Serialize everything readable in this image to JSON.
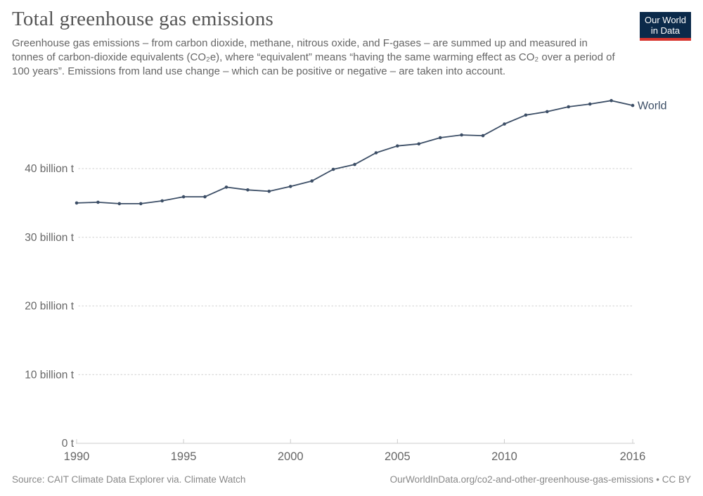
{
  "header": {
    "title": "Total greenhouse gas emissions",
    "subtitle": "Greenhouse gas emissions – from carbon dioxide, methane, nitrous oxide, and F-gases – are summed up and measured in tonnes of carbon-dioxide equivalents (CO₂e), where “equivalent” means “having the same warming effect as CO₂ over a period of 100 years”. Emissions from land use change – which can be positive or negative – are taken into account."
  },
  "logo": {
    "line1": "Our World",
    "line2": "in Data",
    "bg_color": "#0b2a4a",
    "bar_color": "#d7352e",
    "text_color": "#ffffff"
  },
  "footer": {
    "source": "Source: CAIT Climate Data Explorer via. Climate Watch",
    "credit": "OurWorldInData.org/co2-and-other-greenhouse-gas-emissions • CC BY"
  },
  "chart_data": {
    "type": "line",
    "title": "Total greenhouse gas emissions",
    "unit": "billion tonnes CO₂e",
    "x": [
      1990,
      1991,
      1992,
      1993,
      1994,
      1995,
      1996,
      1997,
      1998,
      1999,
      2000,
      2001,
      2002,
      2003,
      2004,
      2005,
      2006,
      2007,
      2008,
      2009,
      2010,
      2011,
      2012,
      2013,
      2014,
      2015,
      2016
    ],
    "series": [
      {
        "name": "World",
        "color": "#3C4E66",
        "values_billion_t": [
          35.0,
          35.1,
          34.9,
          34.9,
          35.3,
          35.9,
          35.9,
          37.3,
          36.9,
          36.7,
          37.4,
          38.2,
          39.9,
          40.6,
          42.3,
          43.3,
          43.6,
          44.5,
          44.9,
          44.8,
          46.5,
          47.8,
          48.3,
          49.0,
          49.4,
          49.9,
          49.2
        ]
      }
    ],
    "xlabel": "",
    "ylabel": "",
    "xlim": [
      1990,
      2016
    ],
    "ylim": [
      0,
      52
    ],
    "yticks": [
      {
        "value": 0,
        "label": "0 t"
      },
      {
        "value": 10,
        "label": "10 billion t"
      },
      {
        "value": 20,
        "label": "20 billion t"
      },
      {
        "value": 30,
        "label": "30 billion t"
      },
      {
        "value": 40,
        "label": "40 billion t"
      }
    ],
    "xticks": [
      {
        "value": 1990,
        "label": "1990"
      },
      {
        "value": 1995,
        "label": "1995"
      },
      {
        "value": 2000,
        "label": "2000"
      },
      {
        "value": 2005,
        "label": "2005"
      },
      {
        "value": 2010,
        "label": "2010"
      },
      {
        "value": 2016,
        "label": "2016"
      }
    ],
    "grid": "horizontal dotted",
    "gridline_color": "#d8d8d8",
    "axis_color": "#cccccc",
    "tick_label_color": "#666666",
    "legend_position": "end-of-line"
  }
}
